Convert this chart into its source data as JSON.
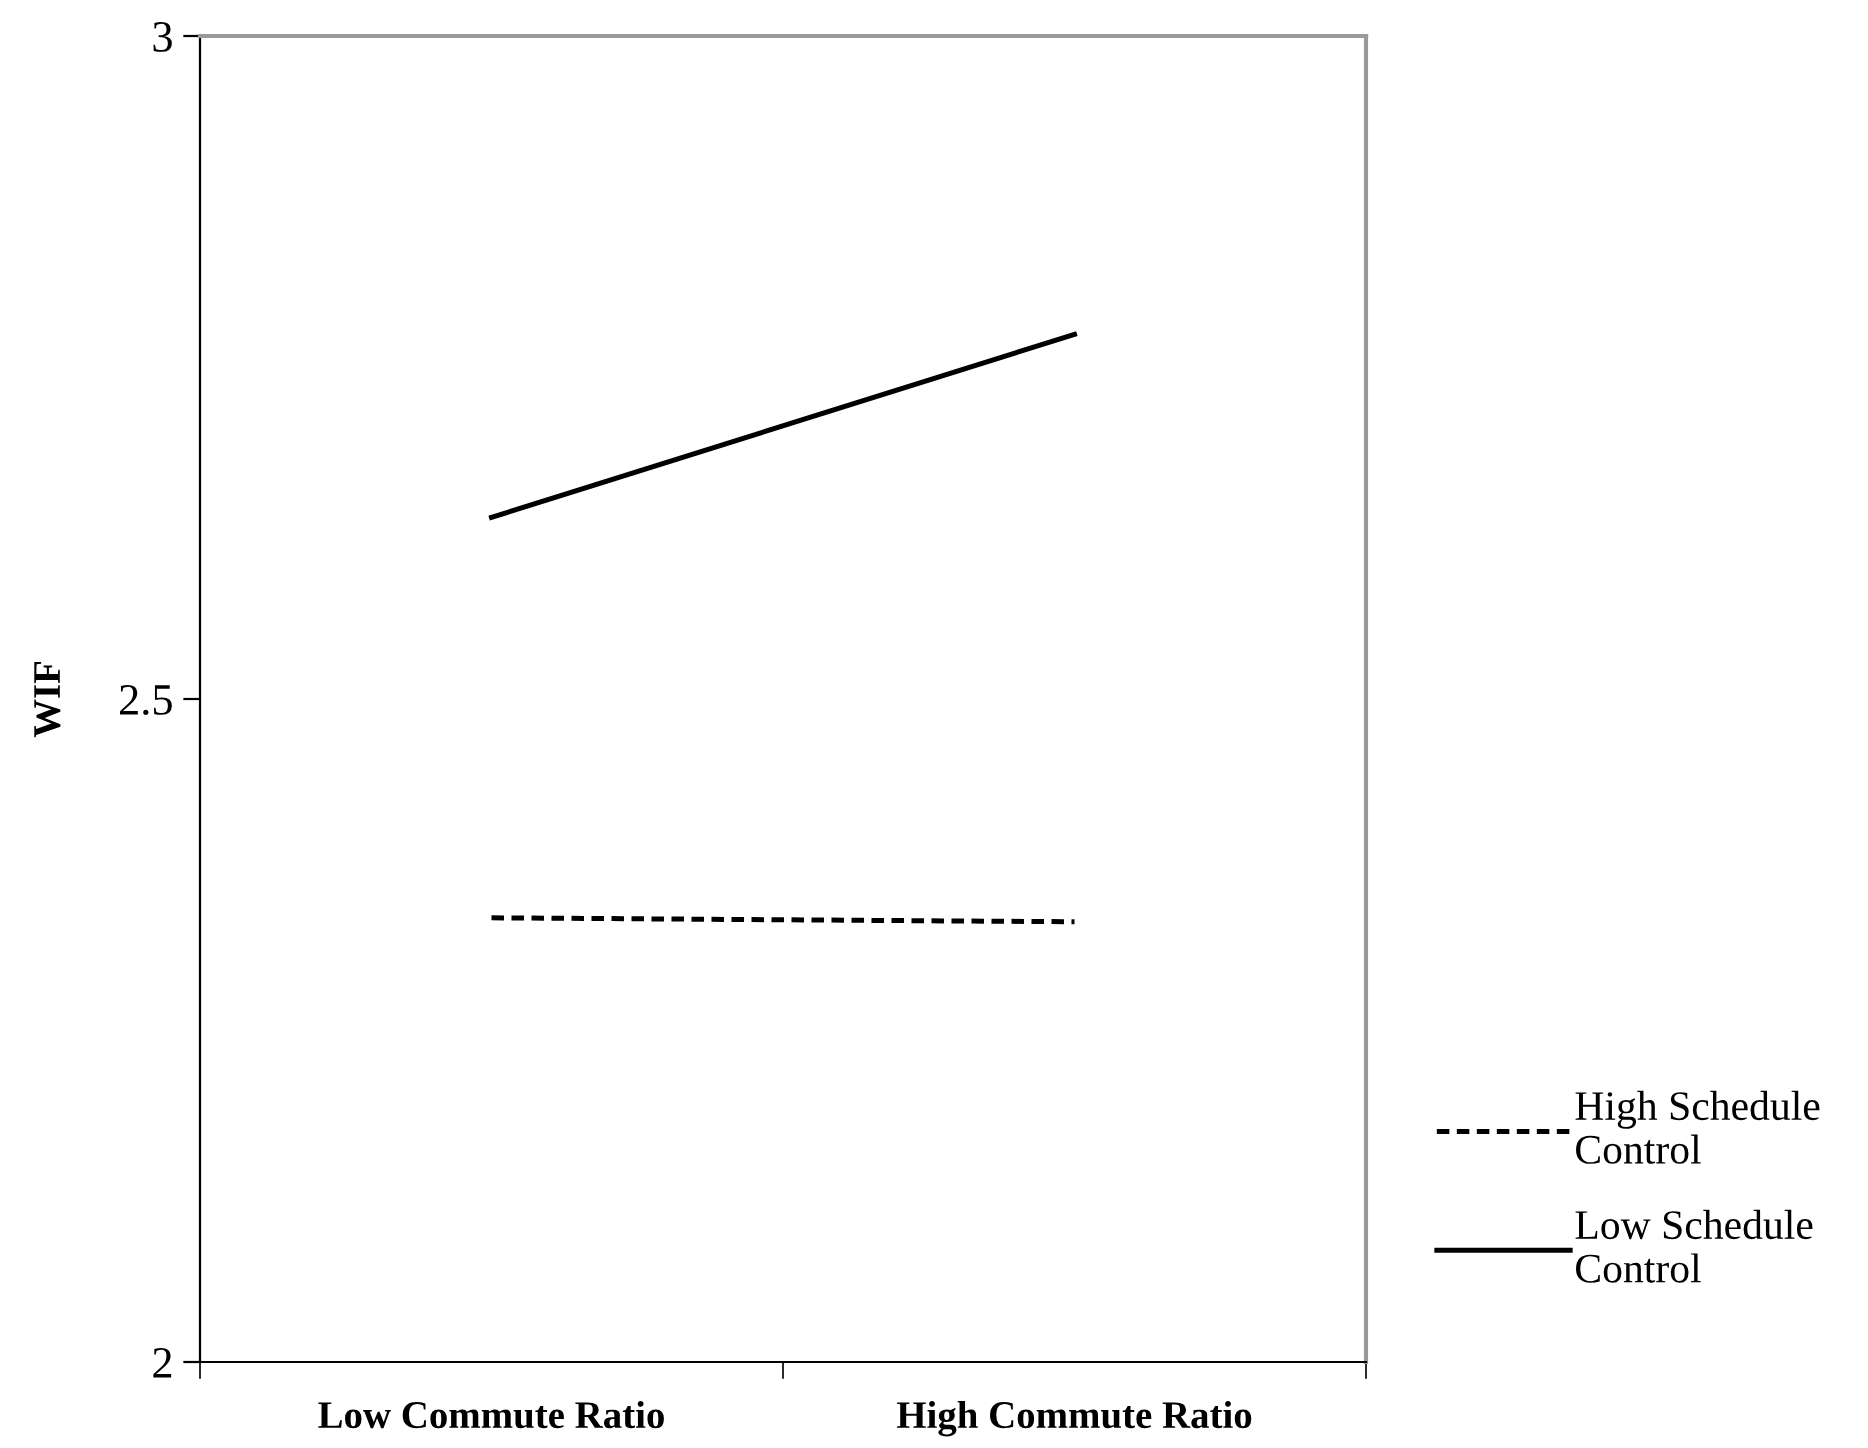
{
  "chart_data": {
    "type": "line",
    "ylabel": "WIF",
    "categories": [
      "Low Commute Ratio",
      "High Commute Ratio"
    ],
    "series": [
      {
        "name": "High Schedule Control",
        "color": "#000000",
        "line_style": "dashed",
        "values": [
          2.335,
          2.332
        ]
      },
      {
        "name": "Low Schedule Control",
        "color": "#000000",
        "line_style": "solid",
        "values": [
          2.637,
          2.775
        ]
      }
    ],
    "ylim": [
      2,
      3
    ],
    "yticks": [
      2,
      2.5,
      3
    ],
    "grid": false,
    "legend": "bottom right",
    "marker": "none"
  }
}
